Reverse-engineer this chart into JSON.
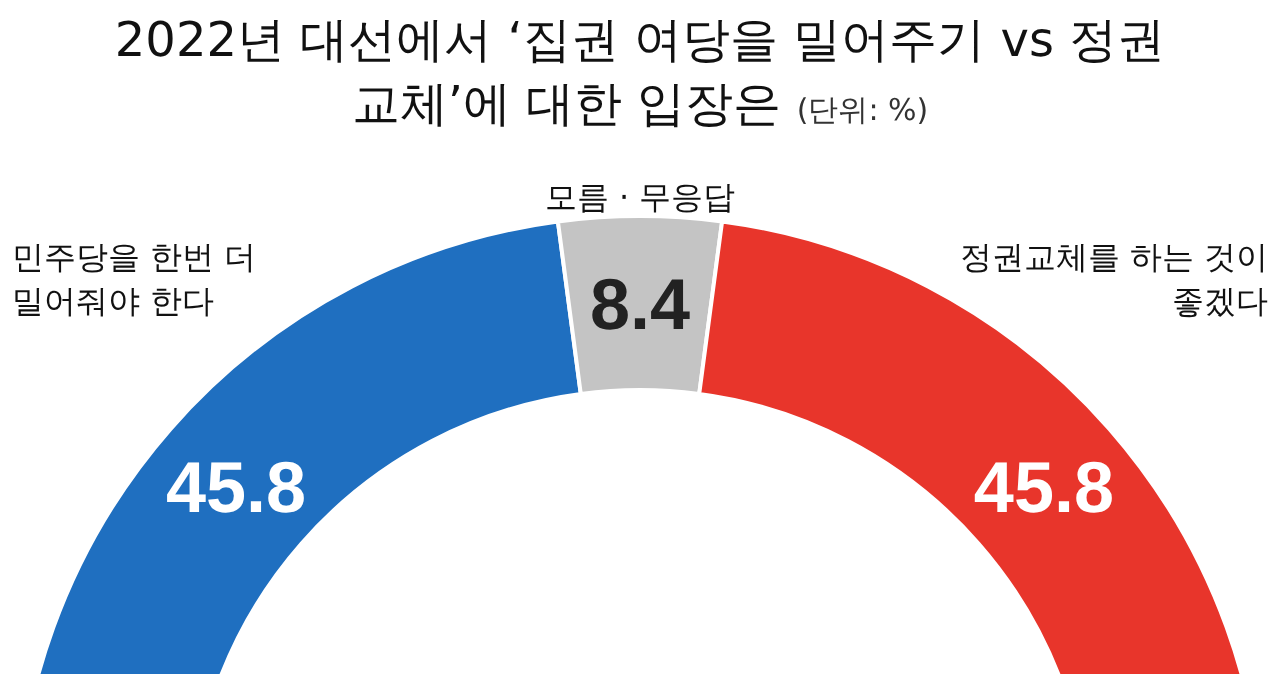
{
  "chart_data": {
    "type": "donut",
    "title": "2022년 대선에서 ‘집권 여당을 밀어주기 vs 정권교체’에 대한 입장은",
    "subtitle": "(단위: %)",
    "categories": [
      "민주당을 한번 더 밀어줘야 한다",
      "모름 · 무응답",
      "정권교체를 하는 것이 좋겠다"
    ],
    "values": [
      45.8,
      8.4,
      45.8
    ],
    "colors": [
      "#1f6fc0",
      "#c4c4c4",
      "#e8352b"
    ],
    "data_labels": true
  }
}
